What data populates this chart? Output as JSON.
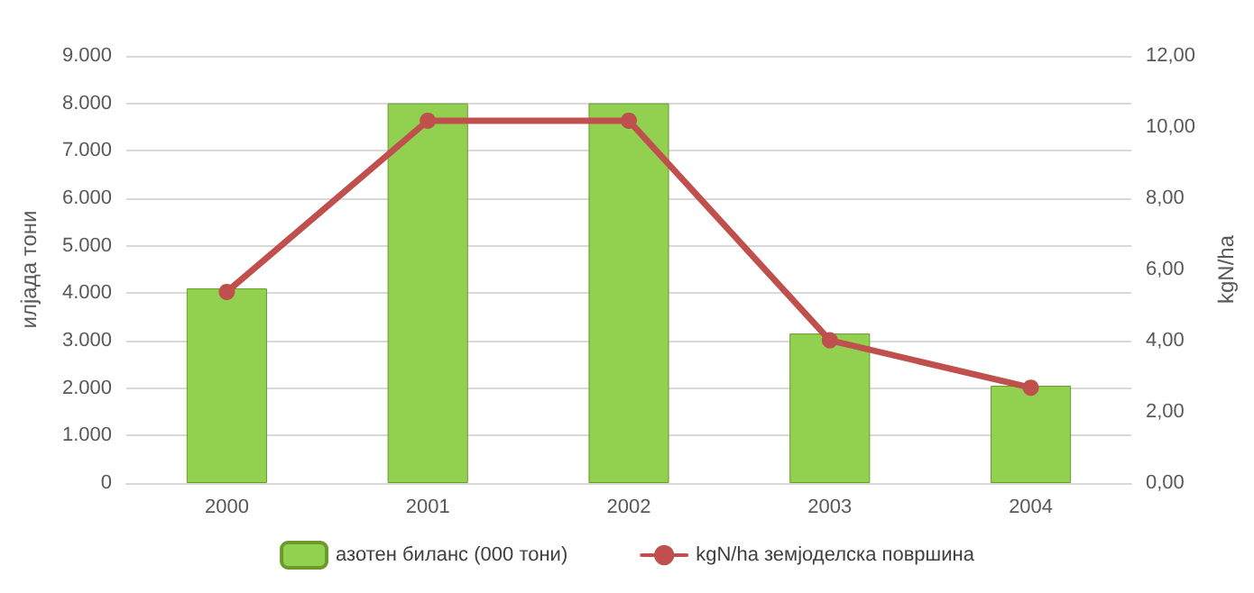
{
  "chart_data": {
    "type": "bar",
    "categories": [
      "2000",
      "2001",
      "2002",
      "2003",
      "2004"
    ],
    "ylabel": "илјада тони",
    "y2label": "kgN/ha",
    "series": [
      {
        "name": "азотен биланс (000 тони)",
        "color": "#92d050",
        "values": [
          4100,
          8000,
          8000,
          3150,
          2050
        ]
      },
      {
        "name": "kgN/ha земјоделска површина",
        "type": "line",
        "axis": "y2",
        "color": "#c0504d",
        "values": [
          5.37,
          10.18,
          10.18,
          4.01,
          2.68
        ]
      }
    ],
    "ylim": [
      0,
      9000
    ],
    "yticks": [
      {
        "value": 0,
        "label": "0"
      },
      {
        "value": 1000,
        "label": "1.000"
      },
      {
        "value": 2000,
        "label": "2.000"
      },
      {
        "value": 3000,
        "label": "3.000"
      },
      {
        "value": 4000,
        "label": "4.000"
      },
      {
        "value": 5000,
        "label": "5.000"
      },
      {
        "value": 6000,
        "label": "6.000"
      },
      {
        "value": 7000,
        "label": "7.000"
      },
      {
        "value": 8000,
        "label": "8.000"
      },
      {
        "value": 9000,
        "label": "9.000"
      }
    ],
    "y2lim": [
      0,
      12
    ],
    "y2ticks": [
      {
        "value": 0,
        "label": "0,00"
      },
      {
        "value": 2,
        "label": "2,00"
      },
      {
        "value": 4,
        "label": "4,00"
      },
      {
        "value": 6,
        "label": "6,00"
      },
      {
        "value": 8,
        "label": "8,00"
      },
      {
        "value": 10,
        "label": "10,00"
      },
      {
        "value": 12,
        "label": "12,00"
      }
    ],
    "grid": "y",
    "legend": "bottom",
    "marker": "circle",
    "line_style": "solid"
  }
}
